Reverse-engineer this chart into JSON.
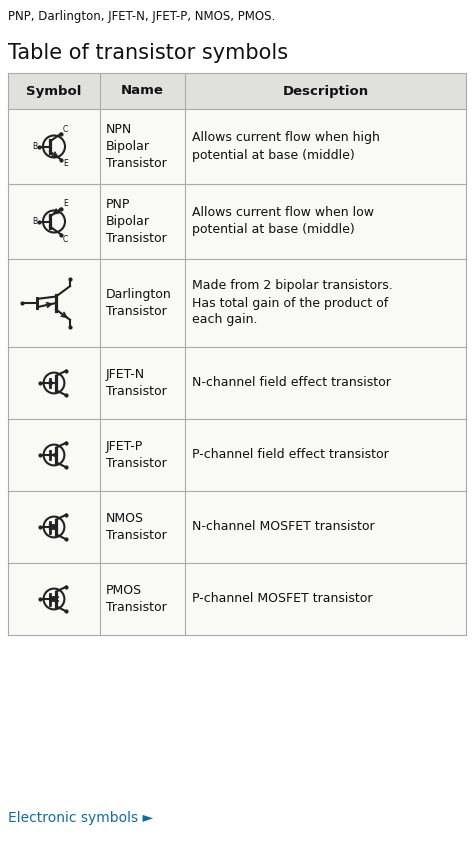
{
  "title_top": "PNP, Darlington, JFET-N, JFET-P, NMOS, PMOS.",
  "title_main": "Table of transistor symbols",
  "col_headers": [
    "Symbol",
    "Name",
    "Description"
  ],
  "rows": [
    {
      "name": "NPN\nBipolar\nTransistor",
      "description": "Allows current flow when high\npotential at base (middle)",
      "type": "NPN"
    },
    {
      "name": "PNP\nBipolar\nTransistor",
      "description": "Allows current flow when low\npotential at base (middle)",
      "type": "PNP"
    },
    {
      "name": "Darlington\nTransistor",
      "description": "Made from 2 bipolar transistors.\nHas total gain of the product of\neach gain.",
      "type": "DARLINGTON"
    },
    {
      "name": "JFET-N\nTransistor",
      "description": "N-channel field effect transistor",
      "type": "JFETN"
    },
    {
      "name": "JFET-P\nTransistor",
      "description": "P-channel field effect transistor",
      "type": "JFETP"
    },
    {
      "name": "NMOS\nTransistor",
      "description": "N-channel MOSFET transistor",
      "type": "NMOS"
    },
    {
      "name": "PMOS\nTransistor",
      "description": "P-channel MOSFET transistor",
      "type": "PMOS"
    }
  ],
  "bg_color": "#ffffff",
  "table_bg": "#f9f9f6",
  "line_color": "#222222",
  "header_bg": "#e0e0dc",
  "text_color": "#111111",
  "link_color": "#1a6aa0",
  "footer_text": "Electronic symbols ►"
}
